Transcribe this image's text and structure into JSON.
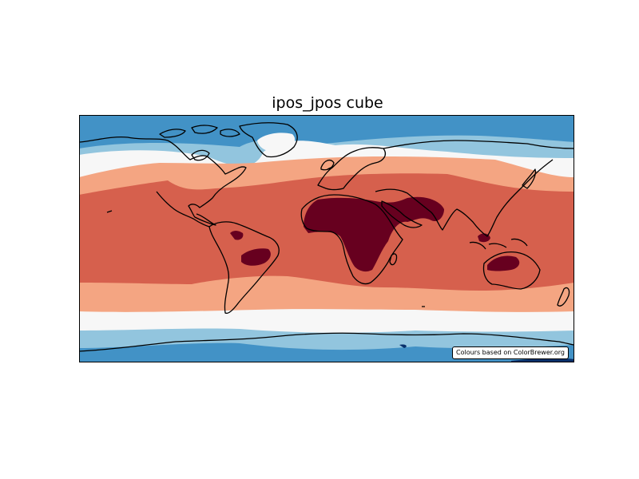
{
  "title": "ipos_jpos cube",
  "attribution": "Colours based on ColorBrewer.org",
  "colors": {
    "deep_blue": "#08306b",
    "blue": "#4292c6",
    "light_blue": "#92c5de",
    "neutral": "#f7f7f7",
    "light_red": "#f4a582",
    "red": "#d6604d",
    "dark_red": "#67001f",
    "coastline": "#000000",
    "frame": "#000000"
  },
  "colormap": "RdBu_r (ColorBrewer)",
  "projection": "Plate Carree (global)"
}
